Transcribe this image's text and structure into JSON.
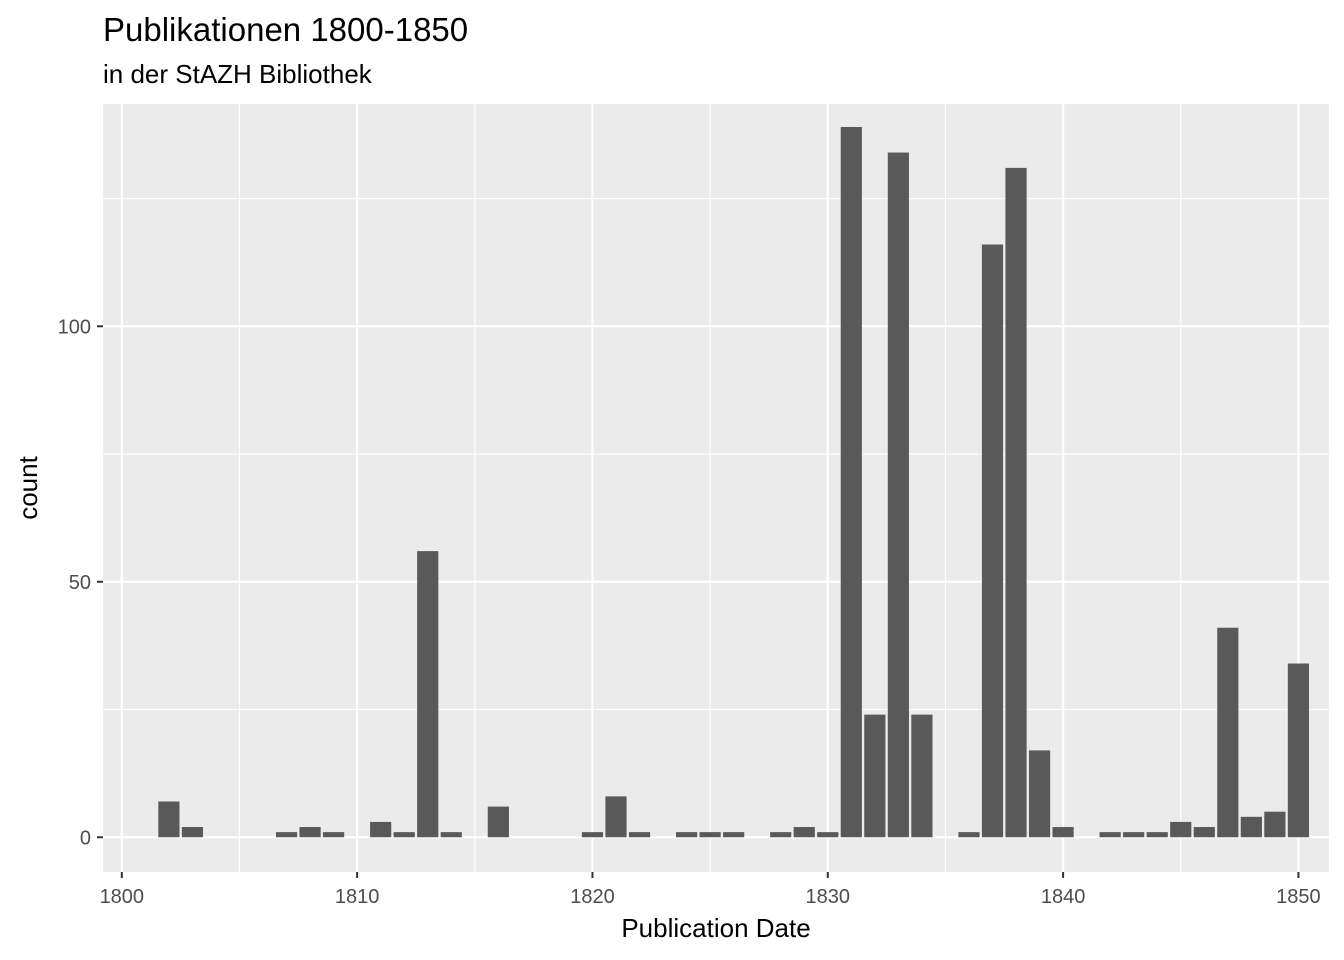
{
  "chart_data": {
    "type": "bar",
    "title": "Publikationen 1800-1850",
    "subtitle": "in der StAZH Bibliothek",
    "xlabel": "Publication Date",
    "ylabel": "count",
    "xlim": [
      1799.2,
      1851.3
    ],
    "ylim": [
      -6.8,
      143.5
    ],
    "x_ticks": [
      1800,
      1810,
      1820,
      1830,
      1840,
      1850
    ],
    "y_ticks": [
      0,
      50,
      100
    ],
    "grid": true,
    "legend": "none",
    "colors": {
      "bar": "#595959",
      "panel": "#ebebeb",
      "grid_major": "#ffffff",
      "tick_text": "#4d4d4d",
      "tick_mark": "#333333"
    },
    "x": [
      1802,
      1803,
      1807,
      1808,
      1809,
      1811,
      1812,
      1813,
      1814,
      1816,
      1820,
      1821,
      1822,
      1824,
      1825,
      1826,
      1828,
      1829,
      1830,
      1831,
      1832,
      1833,
      1834,
      1836,
      1837,
      1838,
      1839,
      1840,
      1842,
      1843,
      1844,
      1845,
      1846,
      1847,
      1848,
      1849,
      1850
    ],
    "values": [
      7,
      2,
      1,
      2,
      1,
      3,
      1,
      56,
      1,
      6,
      1,
      8,
      1,
      1,
      1,
      1,
      1,
      2,
      1,
      139,
      24,
      134,
      24,
      1,
      116,
      131,
      17,
      2,
      1,
      1,
      1,
      3,
      2,
      41,
      4,
      5,
      34
    ]
  }
}
